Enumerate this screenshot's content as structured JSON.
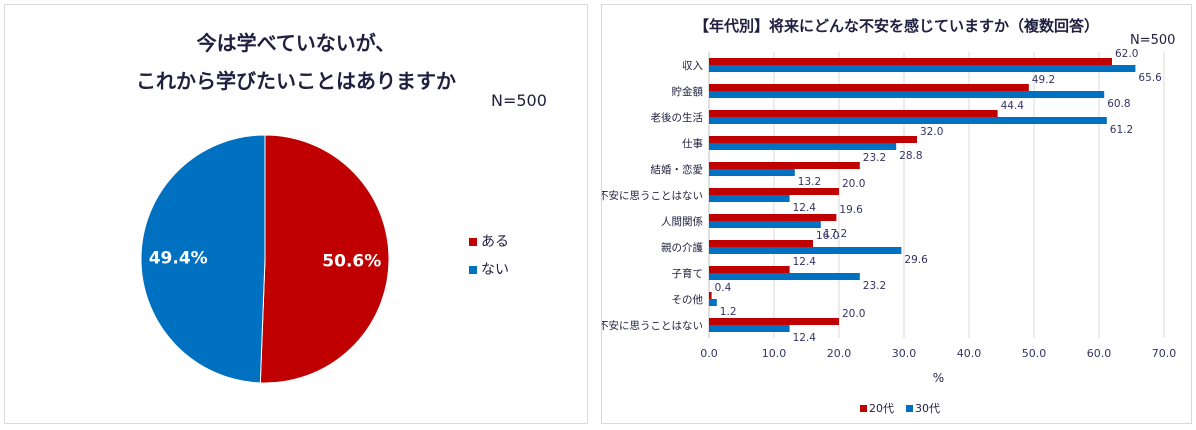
{
  "pie_panel": {
    "title_line1": "今は学べていないが、",
    "title_line2": "これから学びたいことはありますか",
    "n_label": "N=500"
  },
  "bar_panel": {
    "title": "【年代別】将来にどんな不安を感じていますか（複数回答）",
    "n_label": "N=500"
  },
  "chart_data": [
    {
      "type": "pie",
      "categories": [
        "ある",
        "ない"
      ],
      "values": [
        50.6,
        49.4
      ],
      "labels": [
        "50.6%",
        "49.4%"
      ],
      "colors": [
        "#C00000",
        "#0070C0"
      ],
      "legend": "right"
    },
    {
      "type": "bar",
      "orientation": "horizontal",
      "categories": [
        "収入",
        "貯金額",
        "老後の生活",
        "仕事",
        "結婚・恋愛",
        "不安に思うことはない",
        "人間関係",
        "親の介護",
        "子育て",
        "その他",
        "不安に思うことはない"
      ],
      "series": [
        {
          "name": "20代",
          "color": "#C00000",
          "values": [
            62.0,
            49.2,
            44.4,
            32.0,
            23.2,
            20.0,
            19.6,
            16.0,
            12.4,
            0.4,
            20.0
          ],
          "labels": [
            "62.0",
            "49.2",
            "44.4",
            "32.0",
            "23.2",
            "20.0",
            "19.6",
            "16.0",
            "12.4",
            "0.4",
            "20.0"
          ]
        },
        {
          "name": "30代",
          "color": "#0070C0",
          "values": [
            65.6,
            60.8,
            61.2,
            28.8,
            13.2,
            12.4,
            17.2,
            29.6,
            23.2,
            1.2,
            12.4
          ],
          "labels": [
            "65.6",
            "60.8",
            "61.2",
            "28.8",
            "13.2",
            "12.4",
            "17.2",
            "29.6",
            "23.2",
            "1.2",
            "12.4"
          ]
        }
      ],
      "xlim": [
        0,
        70
      ],
      "xticks": [
        "0.0",
        "10.0",
        "20.0",
        "30.0",
        "40.0",
        "50.0",
        "60.0",
        "70.0"
      ],
      "xlabel": "%",
      "grid": true,
      "legend": "bottom"
    }
  ]
}
